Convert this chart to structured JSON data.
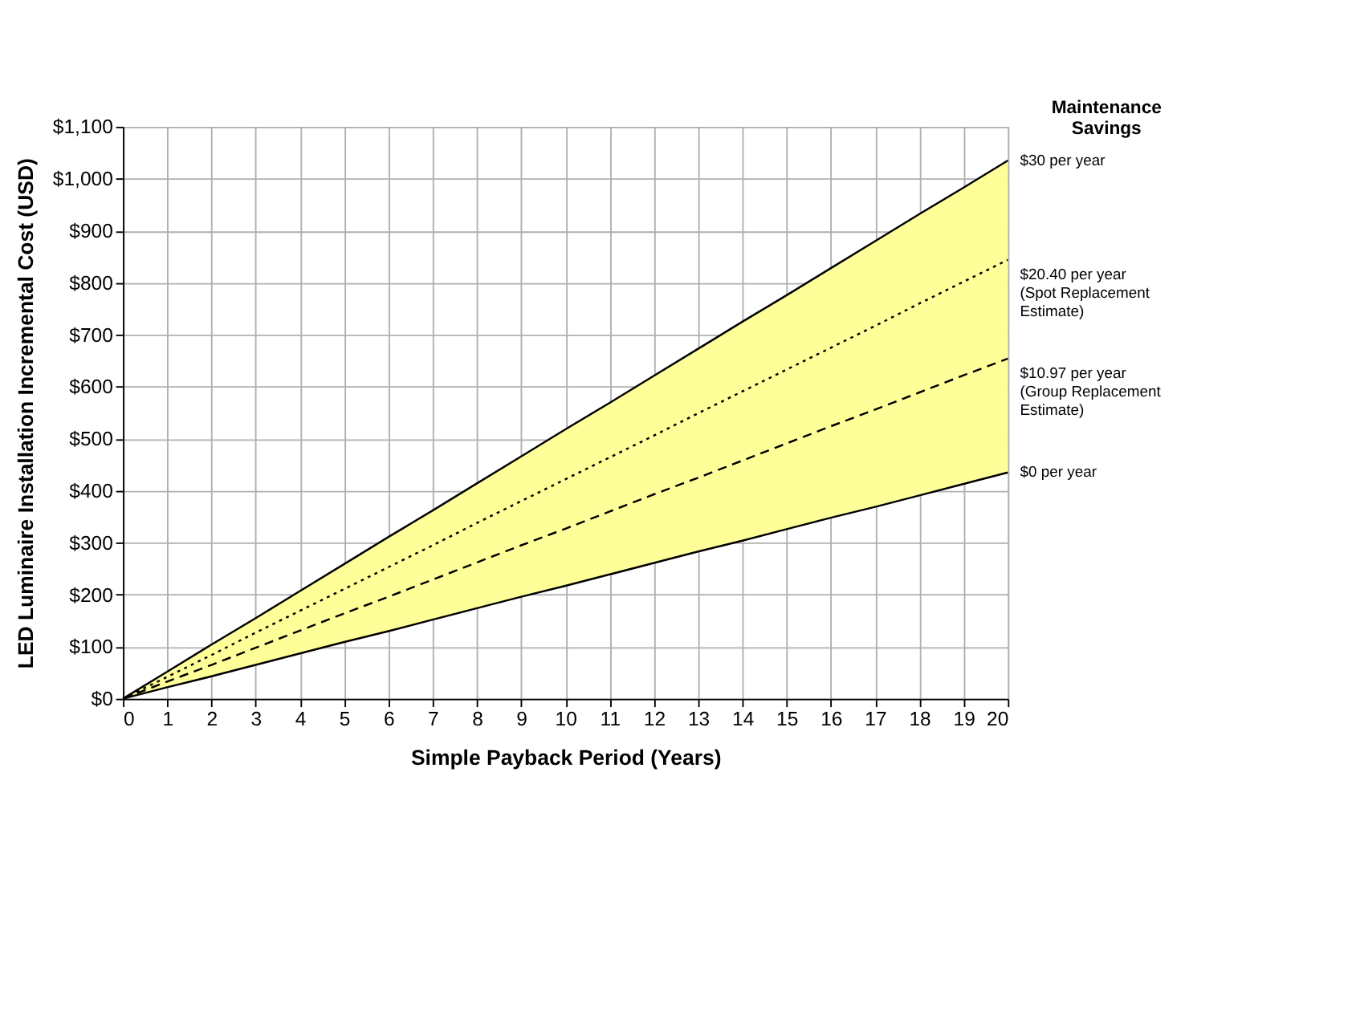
{
  "chart_data": {
    "type": "line",
    "xlabel": "Simple Payback Period (Years)",
    "ylabel": "LED Luminaire Installation Incremental Cost (USD)",
    "legend_title": "Maintenance\nSavings",
    "x": [
      0,
      1,
      2,
      3,
      4,
      5,
      6,
      7,
      8,
      9,
      10,
      11,
      12,
      13,
      14,
      15,
      16,
      17,
      18,
      19,
      20
    ],
    "series": [
      {
        "name": "$30 per year",
        "color": "#000000",
        "line_style": "solid",
        "values": [
          0,
          52,
          104,
          155,
          207,
          259,
          311,
          362,
          414,
          466,
          518,
          569,
          621,
          673,
          725,
          776,
          828,
          880,
          932,
          983,
          1035
        ],
        "upper": [
          0,
          52,
          104,
          155,
          207,
          259,
          311,
          362,
          414,
          466,
          518,
          569,
          621,
          673,
          725,
          776,
          828,
          880,
          932,
          983,
          1035
        ],
        "lower": [
          0,
          22,
          43,
          65,
          87,
          109,
          130,
          152,
          174,
          196,
          217,
          239,
          261,
          283,
          304,
          326,
          348,
          369,
          391,
          413,
          435
        ]
      },
      {
        "name": "$20.40 per year\n(Spot Replacement\nEstimate)",
        "color": "#000000",
        "line_style": "dotted",
        "values": [
          0,
          42,
          84,
          127,
          169,
          211,
          253,
          295,
          338,
          380,
          422,
          464,
          506,
          549,
          591,
          633,
          675,
          717,
          760,
          802,
          844
        ]
      },
      {
        "name": "$10.97 per year\n(Group Replacement\nEstimate)",
        "color": "#000000",
        "line_style": "dashed",
        "values": [
          0,
          33,
          65,
          98,
          131,
          164,
          196,
          229,
          262,
          295,
          327,
          360,
          393,
          425,
          458,
          491,
          524,
          556,
          589,
          622,
          654
        ]
      },
      {
        "name": "$0 per year",
        "color": "#000000",
        "line_style": "solid",
        "values": [
          0,
          22,
          43,
          65,
          87,
          109,
          130,
          152,
          174,
          196,
          217,
          239,
          261,
          283,
          304,
          326,
          348,
          369,
          391,
          413,
          435
        ]
      }
    ],
    "xlim": [
      0,
      20
    ],
    "xticks": [
      0,
      1,
      2,
      3,
      4,
      5,
      6,
      7,
      8,
      9,
      10,
      11,
      12,
      13,
      14,
      15,
      16,
      17,
      18,
      19,
      20
    ],
    "ylim": [
      0,
      1100
    ],
    "yticks": [
      {
        "value": 0,
        "label": "$0"
      },
      {
        "value": 100,
        "label": "$100"
      },
      {
        "value": 200,
        "label": "$200"
      },
      {
        "value": 300,
        "label": "$300"
      },
      {
        "value": 400,
        "label": "$400"
      },
      {
        "value": 500,
        "label": "$500"
      },
      {
        "value": 600,
        "label": "$600"
      },
      {
        "value": 700,
        "label": "$700"
      },
      {
        "value": 800,
        "label": "$800"
      },
      {
        "value": 900,
        "label": "$900"
      },
      {
        "value": 1000,
        "label": "$1,000"
      },
      {
        "value": 1100,
        "label": "$1,100"
      }
    ],
    "grid": true,
    "marker": "none"
  }
}
